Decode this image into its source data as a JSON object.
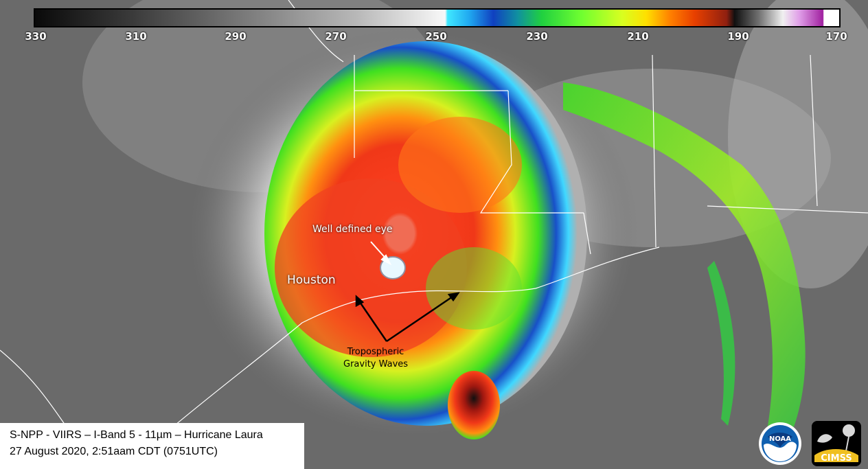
{
  "colorbar": {
    "ticks": [
      "330",
      "310",
      "290",
      "270",
      "250",
      "230",
      "210",
      "190",
      "170"
    ]
  },
  "annotations": {
    "city": "Houston",
    "eye": "Well defined eye",
    "waves_line1": "Tropospheric",
    "waves_line2": "Gravity Waves"
  },
  "caption": {
    "line1": "S-NPP - VIIRS – I-Band 5 - 11µm – Hurricane Laura",
    "line2": "27 August 2020, 2:51aam CDT (0751UTC)"
  },
  "logos": {
    "noaa": "NOAA",
    "cimss": "CIMSS"
  },
  "colors": {
    "background_gray": "#6a6a6a",
    "storm_red": "#e83018",
    "storm_green": "#40e020",
    "storm_blue": "#1850c8"
  }
}
